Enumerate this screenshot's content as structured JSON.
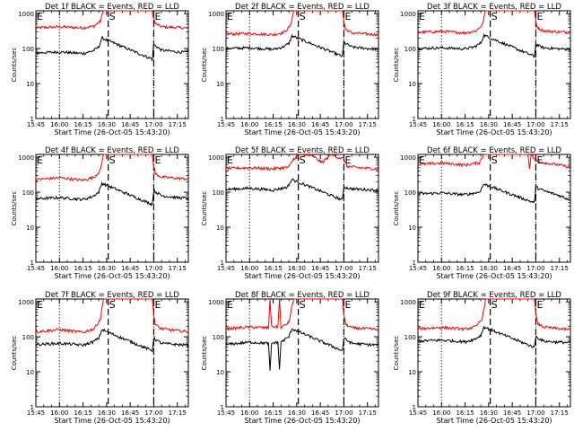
{
  "chart_data": [
    {
      "type": "line",
      "title": "Det 1f BLACK = Events, RED = LLD",
      "xlabel": "Start Time (26-Oct-05 15:43:20)",
      "ylabel": "Counts/sec",
      "x_ticks": [
        "15:45",
        "16:00",
        "16:15",
        "16:30",
        "16:45",
        "17:00",
        "17:15"
      ],
      "y_ticks": [
        "1",
        "10",
        "100",
        "1000"
      ],
      "xlim": [
        "15:45",
        "17:22"
      ],
      "ylim": [
        1,
        1200
      ],
      "y_scale": "log",
      "dotted_lines_x": [
        "16:00",
        "17:00"
      ],
      "dashed_lines_x": [
        "16:31",
        "17:00"
      ],
      "markers": [
        {
          "label": "E",
          "x": "15:45"
        },
        {
          "label": "S",
          "x": "16:31"
        },
        {
          "label": "E",
          "x": "17:00"
        }
      ],
      "series": [
        {
          "color": "#ff0000",
          "x": [
            "15:45",
            "16:00",
            "16:15",
            "16:22",
            "16:26",
            "16:28",
            "16:59",
            "17:00",
            "17:01",
            "17:05",
            "17:15",
            "17:22"
          ],
          "values": [
            390,
            420,
            390,
            440,
            600,
            1200,
            1200,
            700,
            520,
            420,
            400,
            380
          ]
        },
        {
          "color": "#000000",
          "x": [
            "15:45",
            "16:00",
            "16:15",
            "16:21",
            "16:25",
            "16:27",
            "16:59",
            "17:00",
            "17:05",
            "17:15",
            "17:22"
          ],
          "values": [
            75,
            80,
            72,
            85,
            110,
            200,
            50,
            130,
            90,
            80,
            78
          ]
        }
      ]
    },
    {
      "type": "line",
      "title": "Det 2f BLACK = Events, RED = LLD",
      "xlabel": "Start Time (26-Oct-05 15:43:20)",
      "ylabel": "Counts/sec",
      "x_ticks": [
        "15:45",
        "16:00",
        "16:15",
        "16:30",
        "16:45",
        "17:00",
        "17:15"
      ],
      "y_ticks": [
        "1",
        "10",
        "100",
        "1000"
      ],
      "xlim": [
        "15:45",
        "17:22"
      ],
      "ylim": [
        1,
        1200
      ],
      "y_scale": "log",
      "dotted_lines_x": [
        "16:00",
        "17:00"
      ],
      "dashed_lines_x": [
        "16:31",
        "17:00"
      ],
      "markers": [
        {
          "label": "E",
          "x": "15:45"
        },
        {
          "label": "S",
          "x": "16:31"
        },
        {
          "label": "E",
          "x": "17:00"
        }
      ],
      "series": [
        {
          "color": "#ff0000",
          "x": [
            "15:45",
            "16:00",
            "16:15",
            "16:22",
            "16:26",
            "16:28",
            "16:59",
            "17:00",
            "17:01",
            "17:05",
            "17:15",
            "17:22"
          ],
          "values": [
            260,
            270,
            250,
            290,
            450,
            1200,
            1200,
            600,
            360,
            280,
            260,
            250
          ]
        },
        {
          "color": "#000000",
          "x": [
            "15:45",
            "16:00",
            "16:15",
            "16:21",
            "16:25",
            "16:27",
            "16:59",
            "17:00",
            "17:05",
            "17:15",
            "17:22"
          ],
          "values": [
            100,
            105,
            95,
            110,
            140,
            230,
            60,
            150,
            110,
            100,
            95
          ]
        }
      ]
    },
    {
      "type": "line",
      "title": "Det 3f BLACK = Events, RED = LLD",
      "xlabel": "Start Time (26-Oct-05 15:43:20)",
      "ylabel": "Counts/sec",
      "x_ticks": [
        "15:45",
        "16:00",
        "16:15",
        "16:30",
        "16:45",
        "17:00",
        "17:15"
      ],
      "y_ticks": [
        "1",
        "10",
        "100",
        "1000"
      ],
      "xlim": [
        "15:45",
        "17:22"
      ],
      "ylim": [
        1,
        1200
      ],
      "y_scale": "log",
      "dotted_lines_x": [
        "16:00",
        "17:00"
      ],
      "dashed_lines_x": [
        "16:31",
        "17:00"
      ],
      "markers": [
        {
          "label": "E",
          "x": "15:45"
        },
        {
          "label": "S",
          "x": "16:31"
        },
        {
          "label": "E",
          "x": "17:00"
        }
      ],
      "series": [
        {
          "color": "#ff0000",
          "x": [
            "15:45",
            "16:00",
            "16:15",
            "16:22",
            "16:26",
            "16:28",
            "16:59",
            "17:00",
            "17:01",
            "17:05",
            "17:15",
            "17:22"
          ],
          "values": [
            290,
            310,
            280,
            320,
            480,
            1200,
            1200,
            620,
            400,
            320,
            300,
            290
          ]
        },
        {
          "color": "#000000",
          "x": [
            "15:45",
            "16:00",
            "16:15",
            "16:21",
            "16:25",
            "16:27",
            "16:59",
            "17:00",
            "17:05",
            "17:15",
            "17:22"
          ],
          "values": [
            100,
            105,
            98,
            112,
            145,
            240,
            60,
            130,
            105,
            98,
            95
          ]
        }
      ]
    },
    {
      "type": "line",
      "title": "Det 4f BLACK = Events, RED = LLD",
      "xlabel": "Start Time (26-Oct-05 15:43:20)",
      "ylabel": "Counts/sec",
      "x_ticks": [
        "15:45",
        "16:00",
        "16:15",
        "16:30",
        "16:45",
        "17:00",
        "17:15"
      ],
      "y_ticks": [
        "1",
        "10",
        "100",
        "1000"
      ],
      "xlim": [
        "15:45",
        "17:22"
      ],
      "ylim": [
        1,
        1200
      ],
      "y_scale": "log",
      "dotted_lines_x": [
        "16:00",
        "17:00"
      ],
      "dashed_lines_x": [
        "16:31",
        "17:00"
      ],
      "markers": [
        {
          "label": "E",
          "x": "15:45"
        },
        {
          "label": "S",
          "x": "16:31"
        },
        {
          "label": "E",
          "x": "17:00"
        }
      ],
      "series": [
        {
          "color": "#ff0000",
          "x": [
            "15:45",
            "16:00",
            "16:15",
            "16:22",
            "16:26",
            "16:28",
            "16:59",
            "17:00",
            "17:01",
            "17:05",
            "17:15",
            "17:22"
          ],
          "values": [
            230,
            260,
            220,
            270,
            420,
            1200,
            1200,
            560,
            340,
            270,
            250,
            240
          ]
        },
        {
          "color": "#000000",
          "x": [
            "15:45",
            "16:00",
            "16:15",
            "16:21",
            "16:25",
            "16:27",
            "16:59",
            "17:00",
            "17:05",
            "17:15",
            "17:22"
          ],
          "values": [
            65,
            70,
            62,
            75,
            100,
            180,
            45,
            110,
            80,
            70,
            68
          ]
        }
      ]
    },
    {
      "type": "line",
      "title": "Det 5f BLACK = Events, RED = LLD",
      "xlabel": "Start Time (26-Oct-05 15:43:20)",
      "ylabel": "Counts/sec",
      "x_ticks": [
        "15:45",
        "16:00",
        "16:15",
        "16:30",
        "16:45",
        "17:00",
        "17:15"
      ],
      "y_ticks": [
        "1",
        "10",
        "100",
        "1000"
      ],
      "xlim": [
        "15:45",
        "17:22"
      ],
      "ylim": [
        1,
        1200
      ],
      "y_scale": "log",
      "dotted_lines_x": [
        "16:00",
        "17:00"
      ],
      "dashed_lines_x": [
        "16:31",
        "17:00"
      ],
      "markers": [
        {
          "label": "E",
          "x": "15:45"
        },
        {
          "label": "S",
          "x": "16:31"
        },
        {
          "label": "E",
          "x": "17:00"
        }
      ],
      "series": [
        {
          "color": "#ff0000",
          "x": [
            "15:45",
            "16:00",
            "16:15",
            "16:25",
            "16:28",
            "16:32",
            "16:40",
            "16:46",
            "16:52",
            "16:56",
            "17:00",
            "17:02",
            "17:10",
            "17:22"
          ],
          "values": [
            480,
            500,
            470,
            520,
            900,
            1200,
            1100,
            700,
            1200,
            1000,
            900,
            550,
            500,
            460
          ]
        },
        {
          "color": "#000000",
          "x": [
            "15:45",
            "16:00",
            "16:15",
            "16:24",
            "16:27",
            "16:59",
            "17:00",
            "17:05",
            "17:15",
            "17:22"
          ],
          "values": [
            120,
            130,
            115,
            140,
            230,
            60,
            140,
            125,
            118,
            115
          ]
        }
      ]
    },
    {
      "type": "line",
      "title": "Det 6f BLACK = Events, RED = LLD",
      "xlabel": "Start Time (26-Oct-05 15:43:20)",
      "ylabel": "Counts/sec",
      "x_ticks": [
        "15:45",
        "16:00",
        "16:15",
        "16:30",
        "16:45",
        "17:00",
        "17:15"
      ],
      "y_ticks": [
        "1",
        "10",
        "100",
        "1000"
      ],
      "xlim": [
        "15:45",
        "17:22"
      ],
      "ylim": [
        1,
        1200
      ],
      "y_scale": "log",
      "dotted_lines_x": [
        "16:00",
        "17:00"
      ],
      "dashed_lines_x": [
        "16:31",
        "17:00"
      ],
      "markers": [
        {
          "label": "E",
          "x": "15:45"
        },
        {
          "label": "S",
          "x": "16:31"
        },
        {
          "label": "E",
          "x": "17:00"
        }
      ],
      "series": [
        {
          "color": "#ff0000",
          "x": [
            "15:45",
            "16:00",
            "16:15",
            "16:24",
            "16:27",
            "16:55",
            "16:56",
            "16:57",
            "17:00",
            "17:05",
            "17:15",
            "17:22"
          ],
          "values": [
            620,
            680,
            600,
            700,
            1200,
            1200,
            500,
            1200,
            800,
            700,
            600,
            520
          ]
        },
        {
          "color": "#000000",
          "x": [
            "15:45",
            "16:00",
            "16:15",
            "16:24",
            "16:27",
            "16:59",
            "17:00",
            "17:05",
            "17:15",
            "17:22"
          ],
          "values": [
            90,
            95,
            85,
            100,
            170,
            50,
            140,
            110,
            80,
            60
          ]
        }
      ]
    },
    {
      "type": "line",
      "title": "Det 7f BLACK = Events, RED = LLD",
      "xlabel": "Start Time (26-Oct-05 15:43:20)",
      "ylabel": "Counts/sec",
      "x_ticks": [
        "15:45",
        "16:00",
        "16:15",
        "16:30",
        "16:45",
        "17:00",
        "17:15"
      ],
      "y_ticks": [
        "1",
        "10",
        "100",
        "1000"
      ],
      "xlim": [
        "15:45",
        "17:22"
      ],
      "ylim": [
        1,
        1200
      ],
      "y_scale": "log",
      "dotted_lines_x": [
        "16:00",
        "17:00"
      ],
      "dashed_lines_x": [
        "16:31",
        "17:00"
      ],
      "markers": [
        {
          "label": "E",
          "x": "15:45"
        },
        {
          "label": "S",
          "x": "16:31"
        },
        {
          "label": "E",
          "x": "17:00"
        }
      ],
      "series": [
        {
          "color": "#ff0000",
          "x": [
            "15:45",
            "16:00",
            "16:15",
            "16:22",
            "16:26",
            "16:28",
            "16:59",
            "17:00",
            "17:01",
            "17:05",
            "17:15",
            "17:22"
          ],
          "values": [
            140,
            160,
            135,
            170,
            320,
            1200,
            1200,
            450,
            220,
            170,
            150,
            140
          ]
        },
        {
          "color": "#000000",
          "x": [
            "15:45",
            "16:00",
            "16:15",
            "16:21",
            "16:25",
            "16:27",
            "16:59",
            "17:00",
            "17:05",
            "17:15",
            "17:22"
          ],
          "values": [
            60,
            65,
            58,
            70,
            90,
            160,
            40,
            90,
            65,
            60,
            58
          ]
        }
      ]
    },
    {
      "type": "line",
      "title": "Det 8f BLACK = Events, RED = LLD",
      "xlabel": "Start Time (26-Oct-05 15:43:20)",
      "ylabel": "Counts/sec",
      "x_ticks": [
        "15:45",
        "16:00",
        "16:15",
        "16:30",
        "16:45",
        "17:00",
        "17:15"
      ],
      "y_ticks": [
        "1",
        "10",
        "100",
        "1000"
      ],
      "xlim": [
        "15:45",
        "17:22"
      ],
      "ylim": [
        1,
        1200
      ],
      "y_scale": "log",
      "dotted_lines_x": [
        "16:00",
        "17:00"
      ],
      "dashed_lines_x": [
        "16:31",
        "17:00"
      ],
      "markers": [
        {
          "label": "E",
          "x": "15:45"
        },
        {
          "label": "S",
          "x": "16:31"
        },
        {
          "label": "E",
          "x": "17:00"
        }
      ],
      "series": [
        {
          "color": "#ff0000",
          "x": [
            "15:45",
            "16:00",
            "16:12",
            "16:13",
            "16:14",
            "16:18",
            "16:19",
            "16:20",
            "16:25",
            "16:28",
            "16:59",
            "17:00",
            "17:01",
            "17:05",
            "17:15",
            "17:22"
          ],
          "values": [
            170,
            190,
            180,
            1200,
            200,
            190,
            1200,
            180,
            260,
            1200,
            1200,
            450,
            230,
            180,
            170,
            160
          ]
        },
        {
          "color": "#000000",
          "x": [
            "15:45",
            "16:00",
            "16:12",
            "16:13",
            "16:14",
            "16:18",
            "16:19",
            "16:20",
            "16:25",
            "16:27",
            "16:59",
            "17:00",
            "17:05",
            "17:15",
            "17:22"
          ],
          "values": [
            60,
            70,
            65,
            10,
            65,
            70,
            12,
            70,
            100,
            170,
            40,
            90,
            65,
            60,
            58
          ]
        }
      ]
    },
    {
      "type": "line",
      "title": "Det 9f BLACK = Events, RED = LLD",
      "xlabel": "Start Time (26-Oct-05 15:43:20)",
      "ylabel": "Counts/sec",
      "x_ticks": [
        "15:45",
        "16:00",
        "16:15",
        "16:30",
        "16:45",
        "17:00",
        "17:15"
      ],
      "y_ticks": [
        "1",
        "10",
        "100",
        "1000"
      ],
      "xlim": [
        "15:45",
        "17:22"
      ],
      "ylim": [
        1,
        1200
      ],
      "y_scale": "log",
      "dotted_lines_x": [
        "16:00",
        "17:00"
      ],
      "dashed_lines_x": [
        "16:31",
        "17:00"
      ],
      "markers": [
        {
          "label": "E",
          "x": "15:45"
        },
        {
          "label": "S",
          "x": "16:31"
        },
        {
          "label": "E",
          "x": "17:00"
        }
      ],
      "series": [
        {
          "color": "#ff0000",
          "x": [
            "15:45",
            "16:00",
            "16:15",
            "16:22",
            "16:26",
            "16:28",
            "16:59",
            "17:00",
            "17:01",
            "17:05",
            "17:15",
            "17:22"
          ],
          "values": [
            170,
            185,
            165,
            195,
            350,
            1200,
            1200,
            480,
            240,
            190,
            170,
            160
          ]
        },
        {
          "color": "#000000",
          "x": [
            "15:45",
            "16:00",
            "16:15",
            "16:21",
            "16:25",
            "16:27",
            "16:59",
            "17:00",
            "17:05",
            "17:15",
            "17:22"
          ],
          "values": [
            75,
            80,
            72,
            85,
            110,
            190,
            50,
            100,
            75,
            70,
            68
          ]
        }
      ]
    }
  ]
}
